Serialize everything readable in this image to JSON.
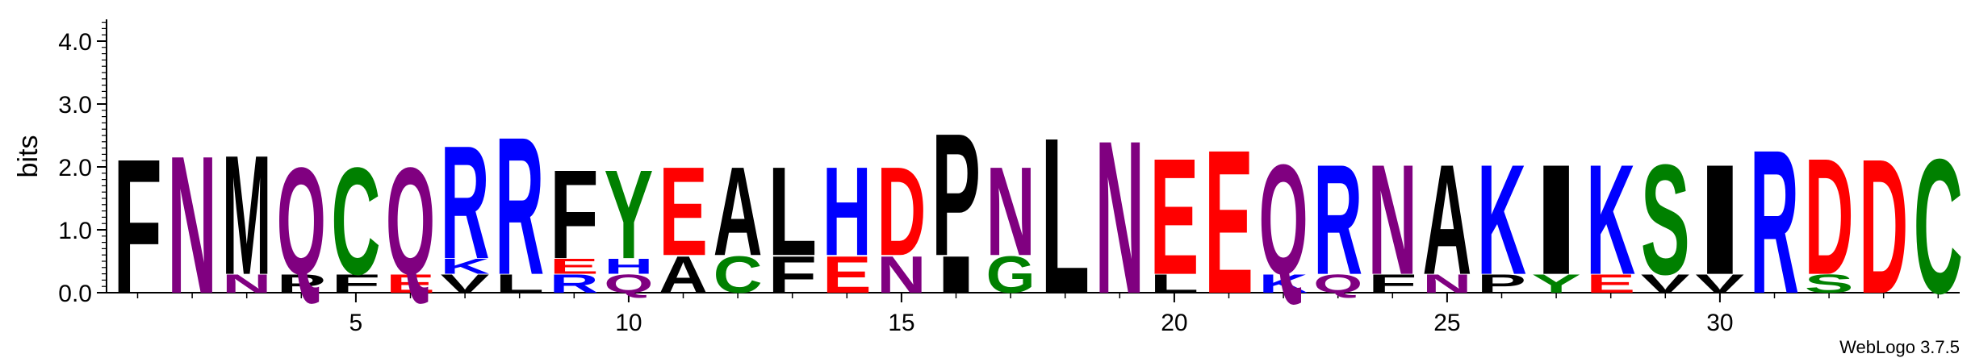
{
  "chart_data": {
    "type": "sequence-logo",
    "ylabel": "bits",
    "ylim": [
      0,
      4.3
    ],
    "y_ticks": [
      "0.0",
      "1.0",
      "2.0",
      "3.0",
      "4.0"
    ],
    "x_ticks": [
      "5",
      "10",
      "15",
      "20",
      "25",
      "30"
    ],
    "footer": "WebLogo 3.7.5",
    "colors": {
      "purple": "#800080",
      "black": "#000000",
      "red": "#ff0000",
      "blue": "#0000ff",
      "green": "#008000"
    },
    "positions": [
      {
        "pos": 1,
        "letters": [
          {
            "l": "F",
            "h": 2.2,
            "c": "black"
          }
        ]
      },
      {
        "pos": 2,
        "letters": [
          {
            "l": "N",
            "h": 2.25,
            "c": "purple"
          }
        ]
      },
      {
        "pos": 3,
        "letters": [
          {
            "l": "N",
            "h": 0.3,
            "c": "purple"
          },
          {
            "l": "M",
            "h": 1.95,
            "c": "black"
          }
        ]
      },
      {
        "pos": 4,
        "letters": [
          {
            "l": "P",
            "h": 0.3,
            "c": "black"
          },
          {
            "l": "Q",
            "h": 1.75,
            "c": "purple"
          }
        ]
      },
      {
        "pos": 5,
        "letters": [
          {
            "l": "F",
            "h": 0.3,
            "c": "black"
          },
          {
            "l": "C",
            "h": 1.75,
            "c": "green"
          }
        ]
      },
      {
        "pos": 6,
        "letters": [
          {
            "l": "E",
            "h": 0.3,
            "c": "red"
          },
          {
            "l": "Q",
            "h": 1.75,
            "c": "purple"
          }
        ]
      },
      {
        "pos": 7,
        "letters": [
          {
            "l": "V",
            "h": 0.3,
            "c": "black"
          },
          {
            "l": "K",
            "h": 0.25,
            "c": "blue"
          },
          {
            "l": "R",
            "h": 1.85,
            "c": "blue"
          }
        ]
      },
      {
        "pos": 8,
        "letters": [
          {
            "l": "L",
            "h": 0.3,
            "c": "black"
          },
          {
            "l": "R",
            "h": 2.25,
            "c": "blue"
          }
        ]
      },
      {
        "pos": 9,
        "letters": [
          {
            "l": "R",
            "h": 0.3,
            "c": "blue"
          },
          {
            "l": "E",
            "h": 0.25,
            "c": "red"
          },
          {
            "l": "F",
            "h": 1.45,
            "c": "black"
          }
        ]
      },
      {
        "pos": 10,
        "letters": [
          {
            "l": "Q",
            "h": 0.3,
            "c": "purple"
          },
          {
            "l": "H",
            "h": 0.25,
            "c": "blue"
          },
          {
            "l": "Y",
            "h": 1.45,
            "c": "green"
          }
        ]
      },
      {
        "pos": 11,
        "letters": [
          {
            "l": "A",
            "h": 0.6,
            "c": "black"
          },
          {
            "l": "E",
            "h": 1.45,
            "c": "red"
          }
        ]
      },
      {
        "pos": 12,
        "letters": [
          {
            "l": "C",
            "h": 0.6,
            "c": "green"
          },
          {
            "l": "A",
            "h": 1.45,
            "c": "black"
          }
        ]
      },
      {
        "pos": 13,
        "letters": [
          {
            "l": "F",
            "h": 0.6,
            "c": "black"
          },
          {
            "l": "L",
            "h": 1.45,
            "c": "black"
          }
        ]
      },
      {
        "pos": 14,
        "letters": [
          {
            "l": "E",
            "h": 0.6,
            "c": "red"
          },
          {
            "l": "H",
            "h": 1.45,
            "c": "blue"
          }
        ]
      },
      {
        "pos": 15,
        "letters": [
          {
            "l": "N",
            "h": 0.6,
            "c": "purple"
          },
          {
            "l": "D",
            "h": 1.45,
            "c": "red"
          }
        ]
      },
      {
        "pos": 16,
        "letters": [
          {
            "l": "I",
            "h": 0.6,
            "c": "black"
          },
          {
            "l": "P",
            "h": 2.0,
            "c": "black"
          }
        ]
      },
      {
        "pos": 17,
        "letters": [
          {
            "l": "G",
            "h": 0.6,
            "c": "green"
          },
          {
            "l": "N",
            "h": 1.45,
            "c": "purple"
          }
        ]
      },
      {
        "pos": 18,
        "letters": [
          {
            "l": "L",
            "h": 2.55,
            "c": "black"
          }
        ]
      },
      {
        "pos": 19,
        "letters": [
          {
            "l": "N",
            "h": 2.5,
            "c": "purple"
          }
        ]
      },
      {
        "pos": 20,
        "letters": [
          {
            "l": "L",
            "h": 0.3,
            "c": "black"
          },
          {
            "l": "E",
            "h": 1.9,
            "c": "red"
          }
        ]
      },
      {
        "pos": 21,
        "letters": [
          {
            "l": "E",
            "h": 2.35,
            "c": "red"
          }
        ]
      },
      {
        "pos": 22,
        "letters": [
          {
            "l": "K",
            "h": 0.3,
            "c": "blue"
          },
          {
            "l": "Q",
            "h": 1.8,
            "c": "purple"
          }
        ]
      },
      {
        "pos": 23,
        "letters": [
          {
            "l": "Q",
            "h": 0.3,
            "c": "purple"
          },
          {
            "l": "R",
            "h": 1.8,
            "c": "blue"
          }
        ]
      },
      {
        "pos": 24,
        "letters": [
          {
            "l": "F",
            "h": 0.3,
            "c": "black"
          },
          {
            "l": "N",
            "h": 1.8,
            "c": "purple"
          }
        ]
      },
      {
        "pos": 25,
        "letters": [
          {
            "l": "N",
            "h": 0.3,
            "c": "purple"
          },
          {
            "l": "A",
            "h": 1.8,
            "c": "black"
          }
        ]
      },
      {
        "pos": 26,
        "letters": [
          {
            "l": "P",
            "h": 0.3,
            "c": "black"
          },
          {
            "l": "K",
            "h": 1.8,
            "c": "blue"
          }
        ]
      },
      {
        "pos": 27,
        "letters": [
          {
            "l": "Y",
            "h": 0.3,
            "c": "green"
          },
          {
            "l": "I",
            "h": 1.8,
            "c": "black"
          }
        ]
      },
      {
        "pos": 28,
        "letters": [
          {
            "l": "E",
            "h": 0.3,
            "c": "red"
          },
          {
            "l": "K",
            "h": 1.8,
            "c": "blue"
          }
        ]
      },
      {
        "pos": 29,
        "letters": [
          {
            "l": "V",
            "h": 0.3,
            "c": "black"
          },
          {
            "l": "S",
            "h": 1.8,
            "c": "green"
          }
        ]
      },
      {
        "pos": 30,
        "letters": [
          {
            "l": "V",
            "h": 0.3,
            "c": "black"
          },
          {
            "l": "I",
            "h": 1.8,
            "c": "black"
          }
        ]
      },
      {
        "pos": 31,
        "letters": [
          {
            "l": "R",
            "h": 2.35,
            "c": "blue"
          }
        ]
      },
      {
        "pos": 32,
        "letters": [
          {
            "l": "S",
            "h": 0.3,
            "c": "green"
          },
          {
            "l": "D",
            "h": 1.9,
            "c": "red"
          }
        ]
      },
      {
        "pos": 33,
        "letters": [
          {
            "l": "D",
            "h": 2.2,
            "c": "red"
          }
        ]
      },
      {
        "pos": 34,
        "letters": [
          {
            "l": "C",
            "h": 2.2,
            "c": "green"
          }
        ]
      }
    ]
  }
}
